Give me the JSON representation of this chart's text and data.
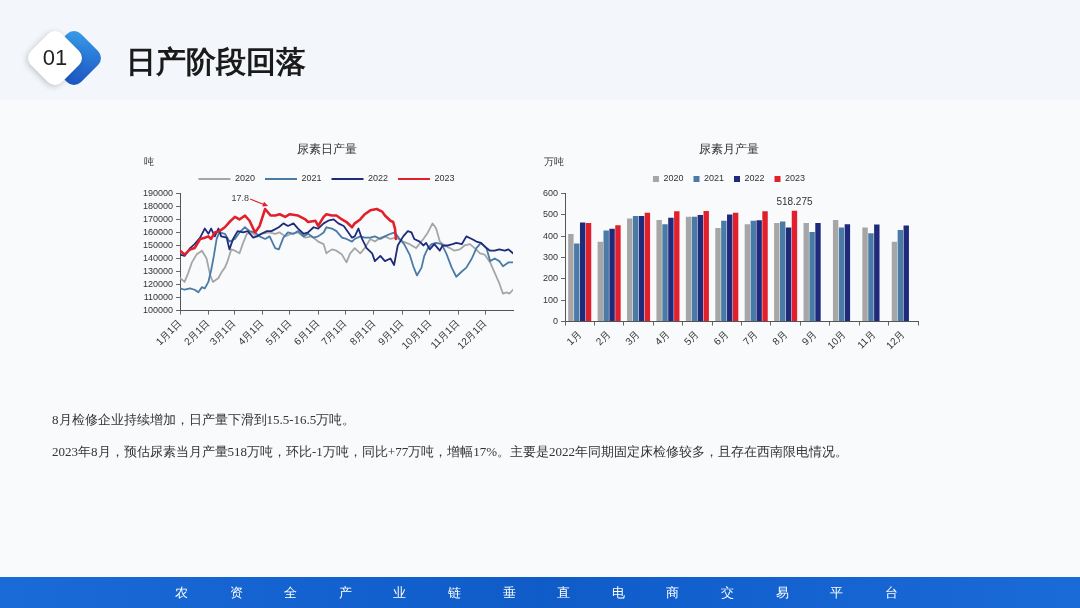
{
  "chart_data": [
    {
      "type": "other",
      "title": "日产阶段回落",
      "annotations": [
        "01"
      ]
    },
    {
      "type": "line",
      "title": "尿素日产量",
      "ylabel": "吨",
      "legend": "top",
      "xlim": [
        "--01-01",
        "--12-31"
      ],
      "xticks": [
        {
          "value": "--01-01",
          "label": "1月1日"
        },
        {
          "value": "--02-01",
          "label": "2月1日"
        },
        {
          "value": "--03-01",
          "label": "3月1日"
        },
        {
          "value": "--04-01",
          "label": "4月1日"
        },
        {
          "value": "--05-01",
          "label": "5月1日"
        },
        {
          "value": "--06-01",
          "label": "6月1日"
        },
        {
          "value": "--07-01",
          "label": "7月1日"
        },
        {
          "value": "--08-01",
          "label": "8月1日"
        },
        {
          "value": "--09-01",
          "label": "9月1日"
        },
        {
          "value": "--10-01",
          "label": "10月1日"
        },
        {
          "value": "--11-01",
          "label": "11月1日"
        },
        {
          "value": "--12-01",
          "label": "12月1日"
        }
      ],
      "ylim": [
        100000,
        190000
      ],
      "yticks": [
        100000,
        110000,
        120000,
        130000,
        140000,
        150000,
        160000,
        170000,
        180000,
        190000
      ],
      "annotations": [
        {
          "text": "17.8",
          "x": "--04-04",
          "y": 178000
        }
      ],
      "series": [
        {
          "name": "2020",
          "color": "#a6a6a6",
          "x": [
            "--01-01",
            "--01-06",
            "--01-10",
            "--01-14",
            "--01-19",
            "--01-25",
            "--01-30",
            "--02-03",
            "--02-06",
            "--02-12",
            "--02-15",
            "--02-19",
            "--02-22",
            "--02-26",
            "--03-02",
            "--03-07",
            "--03-11",
            "--03-15",
            "--03-20",
            "--03-26",
            "--03-31",
            "--04-08",
            "--04-15",
            "--04-20",
            "--04-26",
            "--05-03",
            "--05-10",
            "--05-18",
            "--05-25",
            "--06-01",
            "--06-07",
            "--06-10",
            "--06-16",
            "--06-21",
            "--06-27",
            "--07-02",
            "--07-06",
            "--07-11",
            "--07-17",
            "--07-22",
            "--07-28",
            "--08-02",
            "--08-08",
            "--08-13",
            "--08-19",
            "--08-25",
            "--09-02",
            "--09-09",
            "--09-16",
            "--09-24",
            "--09-29",
            "--10-04",
            "--10-08",
            "--10-12",
            "--10-17",
            "--10-23",
            "--10-28",
            "--11-03",
            "--11-08",
            "--11-14",
            "--11-19",
            "--11-25",
            "--11-30",
            "--12-06",
            "--12-11",
            "--12-16",
            "--12-20",
            "--12-24",
            "--12-27",
            "--12-31"
          ],
          "values": [
            125000,
            122000,
            129000,
            137000,
            143000,
            146000,
            140000,
            127000,
            122000,
            125000,
            129000,
            133000,
            138000,
            147000,
            146000,
            144000,
            152000,
            159000,
            160000,
            157000,
            159000,
            160000,
            159000,
            160000,
            157000,
            159000,
            160000,
            156000,
            157000,
            153000,
            151000,
            144000,
            147000,
            146000,
            143000,
            137000,
            144000,
            148000,
            144000,
            148000,
            155000,
            153000,
            156000,
            157000,
            155000,
            156000,
            153000,
            151000,
            148000,
            155000,
            160000,
            167000,
            163000,
            153000,
            150000,
            148000,
            146000,
            147000,
            150000,
            151000,
            148000,
            144000,
            143000,
            137000,
            129000,
            121000,
            113000,
            114000,
            113000,
            116000
          ]
        },
        {
          "name": "2021",
          "color": "#4a7ba6",
          "x": [
            "--01-01",
            "--01-06",
            "--01-12",
            "--01-17",
            "--01-21",
            "--01-25",
            "--01-28",
            "--02-01",
            "--02-04",
            "--02-07",
            "--02-10",
            "--02-13",
            "--02-19",
            "--02-24",
            "--03-02",
            "--03-07",
            "--03-13",
            "--03-18",
            "--03-24",
            "--03-29",
            "--04-04",
            "--04-09",
            "--04-15",
            "--04-19",
            "--04-24",
            "--04-29",
            "--05-05",
            "--05-10",
            "--05-16",
            "--05-21",
            "--05-27",
            "--06-01",
            "--06-07",
            "--06-10",
            "--06-16",
            "--06-21",
            "--06-27",
            "--07-02",
            "--07-08",
            "--07-11",
            "--07-17",
            "--07-22",
            "--07-28",
            "--08-02",
            "--08-08",
            "--08-13",
            "--08-19",
            "--08-24",
            "--08-29",
            "--09-03",
            "--09-09",
            "--09-13",
            "--09-17",
            "--09-22",
            "--09-25",
            "--09-29",
            "--10-03",
            "--10-08",
            "--10-14",
            "--10-19",
            "--10-25",
            "--10-30",
            "--11-05",
            "--11-10",
            "--11-16",
            "--11-21",
            "--11-26",
            "--12-02",
            "--12-06",
            "--12-11",
            "--12-16",
            "--12-20",
            "--12-26",
            "--12-31"
          ],
          "values": [
            117000,
            116000,
            117000,
            116000,
            114000,
            118000,
            117000,
            122000,
            131000,
            142000,
            155000,
            160000,
            159000,
            153000,
            155000,
            160000,
            164000,
            161000,
            160000,
            157000,
            155000,
            157000,
            148000,
            147000,
            156000,
            160000,
            159000,
            161000,
            157000,
            159000,
            156000,
            157000,
            160000,
            164000,
            163000,
            161000,
            156000,
            155000,
            153000,
            155000,
            157000,
            156000,
            156000,
            157000,
            155000,
            157000,
            159000,
            160000,
            155000,
            151000,
            143000,
            134000,
            127000,
            133000,
            142000,
            148000,
            151000,
            152000,
            151000,
            144000,
            133000,
            126000,
            130000,
            133000,
            140000,
            148000,
            152000,
            148000,
            138000,
            140000,
            138000,
            134000,
            137000,
            137000
          ]
        },
        {
          "name": "2022",
          "color": "#1f2a7a",
          "x": [
            "--01-01",
            "--01-06",
            "--01-12",
            "--01-17",
            "--01-23",
            "--01-28",
            "--02-01",
            "--02-04",
            "--02-08",
            "--02-12",
            "--02-15",
            "--02-21",
            "--02-24",
            "--02-28",
            "--03-05",
            "--03-11",
            "--03-16",
            "--03-22",
            "--03-26",
            "--03-31",
            "--04-06",
            "--04-11",
            "--04-19",
            "--04-24",
            "--04-29",
            "--05-05",
            "--05-10",
            "--05-16",
            "--05-21",
            "--05-27",
            "--06-01",
            "--06-07",
            "--06-12",
            "--06-18",
            "--06-23",
            "--06-29",
            "--07-04",
            "--07-08",
            "--07-11",
            "--07-15",
            "--07-19",
            "--07-24",
            "--07-30",
            "--08-02",
            "--08-08",
            "--08-13",
            "--08-19",
            "--08-23",
            "--08-27",
            "--09-02",
            "--09-07",
            "--09-11",
            "--09-14",
            "--09-20",
            "--09-24",
            "--09-27",
            "--10-01",
            "--10-06",
            "--10-12",
            "--10-15",
            "--10-21",
            "--10-26",
            "--10-30",
            "--11-05",
            "--11-10",
            "--11-16",
            "--11-21",
            "--11-26",
            "--12-02",
            "--12-06",
            "--12-11",
            "--12-16",
            "--12-22",
            "--12-26",
            "--12-31"
          ],
          "values": [
            143000,
            142000,
            148000,
            151000,
            156000,
            163000,
            159000,
            163000,
            157000,
            163000,
            157000,
            156000,
            147000,
            155000,
            161000,
            160000,
            161000,
            156000,
            157000,
            159000,
            161000,
            161000,
            164000,
            167000,
            165000,
            167000,
            163000,
            159000,
            160000,
            164000,
            163000,
            167000,
            169000,
            170000,
            167000,
            165000,
            160000,
            156000,
            157000,
            163000,
            155000,
            148000,
            144000,
            138000,
            142000,
            138000,
            140000,
            135000,
            150000,
            157000,
            161000,
            160000,
            155000,
            153000,
            150000,
            152000,
            147000,
            151000,
            146000,
            150000,
            150000,
            151000,
            152000,
            151000,
            157000,
            155000,
            153000,
            152000,
            148000,
            146000,
            146000,
            147000,
            146000,
            147000,
            144000
          ]
        },
        {
          "name": "2023",
          "color": "#e2202c",
          "x": [
            "--01-01",
            "--01-06",
            "--01-12",
            "--01-17",
            "--01-23",
            "--01-28",
            "--02-01",
            "--02-04",
            "--02-08",
            "--02-13",
            "--02-19",
            "--02-24",
            "--03-02",
            "--03-07",
            "--03-13",
            "--03-18",
            "--03-24",
            "--03-29",
            "--04-04",
            "--04-10",
            "--04-15",
            "--04-20",
            "--04-26",
            "--05-01",
            "--05-10",
            "--05-18",
            "--05-21",
            "--05-29",
            "--06-01",
            "--06-07",
            "--06-10",
            "--06-16",
            "--06-21",
            "--06-27",
            "--07-02",
            "--07-08",
            "--07-11",
            "--07-17",
            "--07-22",
            "--07-28",
            "--08-04",
            "--08-10",
            "--08-13",
            "--08-19",
            "--08-22",
            "--08-24",
            "--08-25"
          ],
          "values": [
            146000,
            143000,
            147000,
            148000,
            155000,
            156000,
            157000,
            155000,
            160000,
            161000,
            164000,
            168000,
            172000,
            170000,
            173000,
            169000,
            160000,
            165000,
            178000,
            173000,
            173000,
            174000,
            172000,
            174000,
            173000,
            170000,
            168000,
            169000,
            165000,
            172000,
            174000,
            173000,
            173000,
            170000,
            168000,
            164000,
            167000,
            170000,
            174000,
            177000,
            178000,
            176000,
            173000,
            169000,
            168000,
            163000,
            155000
          ]
        }
      ]
    },
    {
      "type": "bar",
      "title": "尿素月产量",
      "ylabel": "万吨",
      "legend": "top",
      "categories": [
        "1月",
        "2月",
        "3月",
        "4月",
        "5月",
        "6月",
        "7月",
        "8月",
        "9月",
        "10月",
        "11月",
        "12月"
      ],
      "ylim": [
        0,
        600
      ],
      "yticks": [
        0,
        100,
        200,
        300,
        400,
        500,
        600
      ],
      "series": [
        {
          "name": "2020",
          "color": "#a6a6a6",
          "values": [
            410,
            374,
            483,
            475,
            491,
            438,
            456,
            462,
            462,
            475,
            440,
            374
          ]
        },
        {
          "name": "2021",
          "color": "#4a7ba6",
          "values": [
            366,
            426,
            494,
            456,
            491,
            472,
            472,
            469,
            419,
            440,
            414,
            429
          ]
        },
        {
          "name": "2022",
          "color": "#1f2a7a",
          "values": [
            464,
            434,
            494,
            486,
            499,
            501,
            474,
            440,
            462,
            456,
            454,
            450
          ]
        },
        {
          "name": "2023",
          "color": "#e2202c",
          "values": [
            461,
            451,
            510,
            517,
            518,
            509,
            517,
            518.275,
            null,
            null,
            null,
            null
          ],
          "value_labels": [
            null,
            null,
            null,
            null,
            null,
            null,
            null,
            "518.275",
            null,
            null,
            null,
            null
          ]
        }
      ]
    },
    {
      "type": "other",
      "annotations": [
        "8月检修企业持续增加，日产量下滑到15.5-16.5万吨。",
        "2023年8月，预估尿素当月产量518万吨，环比-1万吨，同比+77万吨，增幅17%。主要是2022年同期固定床检修较多，且存在西南限电情况。",
        "农资全产业链垂直电商交易平台"
      ]
    }
  ]
}
